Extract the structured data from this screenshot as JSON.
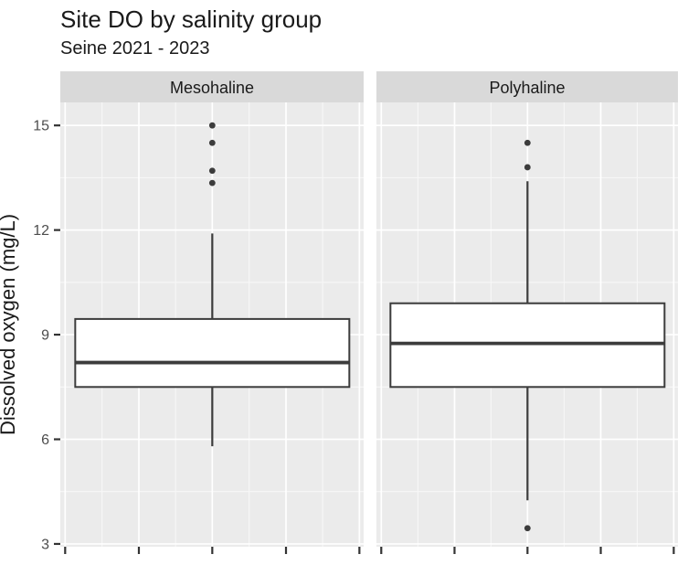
{
  "header": {
    "title": "Site DO by salinity group",
    "subtitle": "Seine 2021 - 2023"
  },
  "chart_data": {
    "type": "boxplot",
    "title": "Site DO by salinity group",
    "subtitle": "Seine 2021 - 2023",
    "xlabel": "",
    "ylabel": "Dissolved oxygen (mg/L)",
    "yticks": [
      3,
      6,
      9,
      12,
      15
    ],
    "ylim": [
      2.92,
      15.66
    ],
    "grid": "white major and minor gridlines on grey panel",
    "legend": "none",
    "x_tick_labels_visible": false,
    "x_ticks_per_panel": 5,
    "facets": [
      {
        "label": "Mesohaline",
        "box": {
          "lower_whisker": 5.8,
          "q1": 7.5,
          "median": 8.2,
          "q3": 9.45,
          "upper_whisker": 11.9
        },
        "outliers": [
          13.35,
          13.7,
          14.5,
          15.0
        ]
      },
      {
        "label": "Polyhaline",
        "box": {
          "lower_whisker": 4.25,
          "q1": 7.5,
          "median": 8.75,
          "q3": 9.9,
          "upper_whisker": 13.4
        },
        "outliers": [
          3.45,
          13.8,
          14.5
        ]
      }
    ],
    "colors": {
      "background": "#ffffff",
      "panel_bg": "#ebebeb",
      "strip_bg": "#d9d9d9",
      "grid_major": "#ffffff",
      "grid_minor": "#f7f7f7",
      "box_fill": "#ffffff",
      "box_stroke": "#3c3c3c",
      "outlier": "#3c3c3c",
      "axis_tick": "#333333",
      "tick_label": "#4d4d4d",
      "strip_text": "#1a1a1a",
      "title_text": "#1a1a1a"
    }
  }
}
